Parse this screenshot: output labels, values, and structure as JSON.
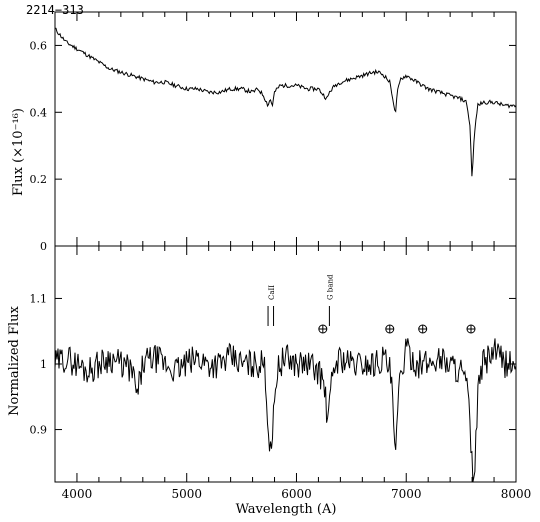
{
  "chart_data": [
    {
      "type": "line",
      "title": "2214−313",
      "xlabel": "",
      "ylabel": "Flux (×10⁻¹⁶)",
      "xlim": [
        3800,
        8000
      ],
      "ylim": [
        0,
        0.7
      ],
      "yticks": [
        0,
        0.2,
        0.4,
        0.6
      ],
      "yticklabels": [
        "0",
        "0.2",
        "0.4",
        "0.6"
      ],
      "series": [
        {
          "x": [
            3800,
            3850,
            3900,
            3950,
            4000,
            4100,
            4200,
            4300,
            4400,
            4500,
            4600,
            4700,
            4800,
            4900,
            5000,
            5100,
            5200,
            5300,
            5400,
            5500,
            5600,
            5650,
            5700,
            5740,
            5760,
            5780,
            5800,
            5850,
            5900,
            6000,
            6100,
            6200,
            6250,
            6280,
            6300,
            6350,
            6400,
            6500,
            6600,
            6700,
            6750,
            6800,
            6850,
            6880,
            6900,
            6920,
            6950,
            7000,
            7100,
            7200,
            7300,
            7400,
            7500,
            7550,
            7580,
            7600,
            7620,
            7650,
            7700,
            7800,
            7900,
            8000
          ],
          "values": [
            0.65,
            0.63,
            0.61,
            0.6,
            0.59,
            0.57,
            0.55,
            0.53,
            0.52,
            0.51,
            0.5,
            0.49,
            0.49,
            0.48,
            0.47,
            0.47,
            0.46,
            0.46,
            0.47,
            0.47,
            0.46,
            0.47,
            0.45,
            0.42,
            0.44,
            0.42,
            0.46,
            0.48,
            0.48,
            0.48,
            0.47,
            0.47,
            0.45,
            0.44,
            0.46,
            0.48,
            0.49,
            0.5,
            0.51,
            0.52,
            0.52,
            0.51,
            0.49,
            0.44,
            0.39,
            0.46,
            0.5,
            0.51,
            0.49,
            0.47,
            0.46,
            0.45,
            0.44,
            0.43,
            0.36,
            0.2,
            0.33,
            0.42,
            0.43,
            0.43,
            0.42,
            0.42
          ]
        }
      ]
    },
    {
      "type": "line",
      "title": "",
      "xlabel": "Wavelength (A)",
      "ylabel": "Normalized Flux",
      "xlim": [
        3800,
        8000
      ],
      "ylim": [
        0.82,
        1.18
      ],
      "xticks": [
        4000,
        5000,
        6000,
        7000,
        8000
      ],
      "xticklabels": [
        "4000",
        "5000",
        "6000",
        "7000",
        "8000"
      ],
      "yticks": [
        0.9,
        1,
        1.1
      ],
      "yticklabels": [
        "0.9",
        "1",
        "1.1"
      ],
      "annotations": [
        {
          "text": "CaII",
          "x": [
            5741,
            5791
          ]
        },
        {
          "text": "G band",
          "x": [
            6300
          ]
        }
      ],
      "telluric_marks": [
        6240,
        6850,
        7150,
        7590
      ],
      "series": [
        {
          "x": [
            3800,
            3900,
            4000,
            4100,
            4200,
            4300,
            4400,
            4500,
            4550,
            4600,
            4700,
            4800,
            4900,
            5000,
            5100,
            5200,
            5300,
            5400,
            5500,
            5600,
            5700,
            5720,
            5740,
            5760,
            5780,
            5800,
            5820,
            5850,
            5900,
            6000,
            6100,
            6200,
            6250,
            6280,
            6300,
            6320,
            6350,
            6400,
            6500,
            6600,
            6700,
            6800,
            6850,
            6880,
            6900,
            6920,
            6950,
            7000,
            7100,
            7200,
            7300,
            7400,
            7500,
            7560,
            7580,
            7600,
            7620,
            7640,
            7660,
            7700,
            7800,
            7900,
            8000
          ],
          "values": [
            1.0,
            1.01,
            1.0,
            0.99,
            1.0,
            1.01,
            1.0,
            0.99,
            0.95,
            1.0,
            1.01,
            1.0,
            0.99,
            1.0,
            1.01,
            1.0,
            1.0,
            1.01,
            1.0,
            1.0,
            1.0,
            0.98,
            0.9,
            0.88,
            0.89,
            0.94,
            0.99,
            1.0,
            1.01,
            1.0,
            1.0,
            0.99,
            0.97,
            0.92,
            0.93,
            0.97,
            1.0,
            1.01,
            1.0,
            1.0,
            1.0,
            1.01,
            0.99,
            0.94,
            0.84,
            0.92,
            0.99,
            1.02,
            1.0,
            1.0,
            1.01,
            1.0,
            0.99,
            0.96,
            0.9,
            0.84,
            0.83,
            0.9,
            0.97,
            1.0,
            1.02,
            1.0,
            1.0
          ]
        }
      ]
    }
  ]
}
